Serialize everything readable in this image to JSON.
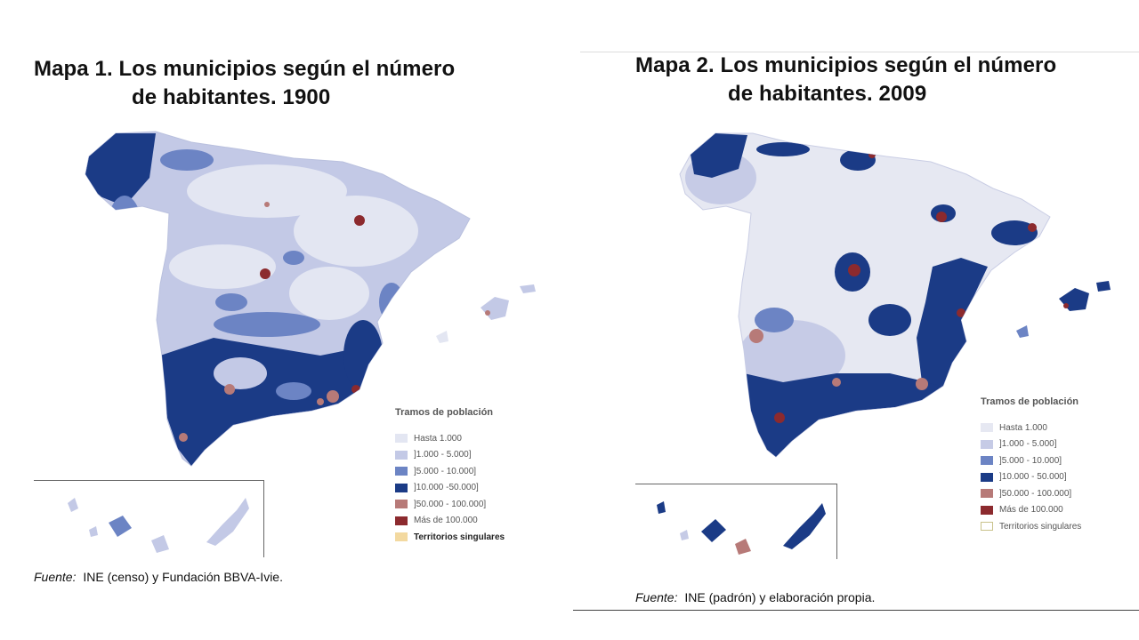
{
  "maps": [
    {
      "title_num": "Mapa 1.",
      "title_line1": "Los municipios según el número",
      "title_line2": "de habitantes. 1900",
      "legend_title": "Tramos de población",
      "legend": [
        {
          "label": "Hasta 1.000",
          "color": "#e3e6f2"
        },
        {
          "label": "]1.000 - 5.000]",
          "color": "#c3c9e6"
        },
        {
          "label": "]5.000 - 10.000]",
          "color": "#6c84c4"
        },
        {
          "label": "]10.000 -50.000]",
          "color": "#1b3b86"
        },
        {
          "label": "]50.000 - 100.000]",
          "color": "#b77a78"
        },
        {
          "label": "Más de 100.000",
          "color": "#8c2a2e"
        },
        {
          "label": "Territorios singulares",
          "color": "#f3d9a0"
        }
      ],
      "source_label": "Fuente:",
      "source_text": "INE (censo) y Fundación BBVA-Ivie."
    },
    {
      "title_num": "Mapa 2.",
      "title_line1": "Los municipios según el número",
      "title_line2": "de habitantes. 2009",
      "legend_title": "Tramos de población",
      "legend": [
        {
          "label": "Hasta 1.000",
          "color": "#e6e8f2"
        },
        {
          "label": "]1.000 - 5.000]",
          "color": "#c6cbe6"
        },
        {
          "label": "]5.000 - 10.000]",
          "color": "#6c84c4"
        },
        {
          "label": "]10.000 - 50.000]",
          "color": "#1b3b86"
        },
        {
          "label": "]50.000 - 100.000]",
          "color": "#b77a78"
        },
        {
          "label": "Más de 100.000",
          "color": "#8c2a2e"
        },
        {
          "label": "Territorios singulares",
          "color": "#ffffff"
        }
      ],
      "source_label": "Fuente:",
      "source_text": "INE (padrón) y elaboración propia."
    }
  ]
}
